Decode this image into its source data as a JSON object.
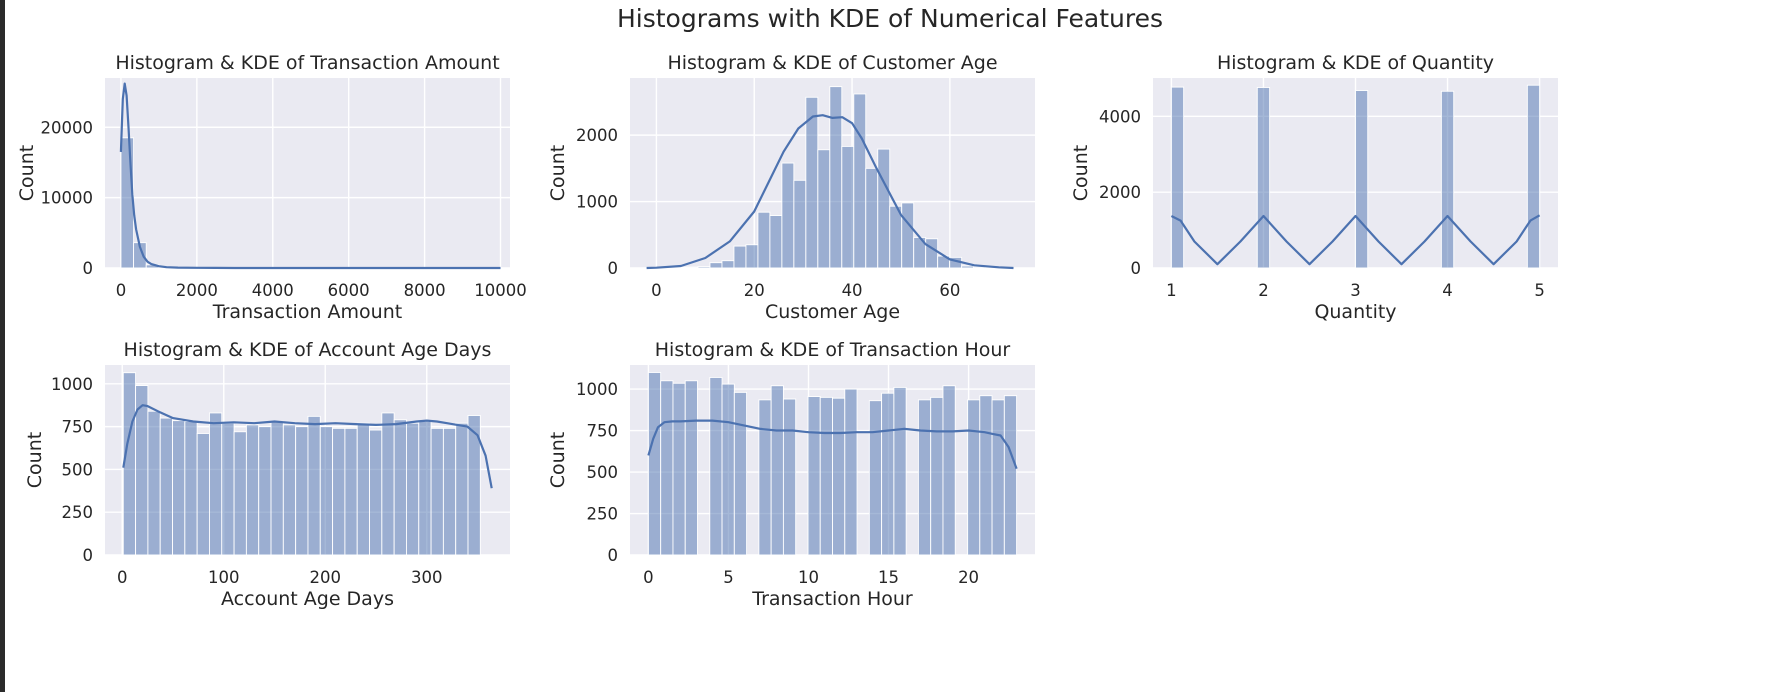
{
  "figure": {
    "suptitle": "Histograms with KDE of Numerical Features",
    "background": "#ffffff",
    "axes_facecolor": "#eaeaf2",
    "grid_color": "#ffffff",
    "bar_color": "#4c72b0",
    "bar_alpha": 0.5,
    "line_color": "#4c72b0"
  },
  "chart_data": [
    {
      "type": "bar",
      "title": "Histogram & KDE of Transaction Amount",
      "xlabel": "Transaction Amount",
      "ylabel": "Count",
      "xlim": [
        -420,
        10250
      ],
      "ylim": [
        0,
        27000
      ],
      "xticks": [
        0,
        2000,
        4000,
        6000,
        8000,
        10000
      ],
      "xtick_labels": [
        "0",
        "2000",
        "4000",
        "6000",
        "8000",
        "10000"
      ],
      "yticks": [
        0,
        10000,
        20000
      ],
      "ytick_labels": [
        "0",
        "10000",
        "20000"
      ],
      "grid": true,
      "hist": {
        "start": 0,
        "binwidth": 333,
        "counts": [
          18500,
          3600,
          450,
          150,
          80,
          45,
          30,
          20,
          15,
          10,
          8,
          6,
          5,
          4,
          4,
          3,
          3,
          2,
          2,
          2,
          2,
          1,
          1,
          1,
          1,
          1,
          1,
          1,
          1,
          1
        ]
      },
      "kde": {
        "x": [
          0,
          50,
          100,
          150,
          200,
          250,
          300,
          350,
          400,
          500,
          600,
          700,
          800,
          1000,
          1200,
          1500,
          2000,
          2500,
          3000,
          4000,
          5000,
          6000,
          8000,
          10000
        ],
        "y": [
          16500,
          24000,
          26200,
          24500,
          20000,
          15000,
          10500,
          7500,
          5500,
          3000,
          1600,
          900,
          550,
          250,
          120,
          60,
          25,
          10,
          5,
          2,
          0,
          0,
          0,
          0
        ]
      }
    },
    {
      "type": "bar",
      "title": "Histogram & KDE of Customer Age",
      "xlabel": "Customer Age",
      "ylabel": "Count",
      "xlim": [
        -5.4,
        77.4
      ],
      "ylim": [
        0,
        2860
      ],
      "xticks": [
        0,
        20,
        40,
        60
      ],
      "xtick_labels": [
        "0",
        "20",
        "40",
        "60"
      ],
      "yticks": [
        0,
        1000,
        2000
      ],
      "ytick_labels": [
        "0",
        "1000",
        "2000"
      ],
      "grid": true,
      "hist": {
        "start": -1.3,
        "binwidth": 2.45,
        "counts": [
          5,
          8,
          10,
          14,
          20,
          80,
          110,
          330,
          350,
          840,
          790,
          1580,
          1320,
          2570,
          1780,
          2730,
          1830,
          2620,
          1500,
          1790,
          930,
          980,
          460,
          440,
          180,
          160,
          30,
          15,
          5,
          3
        ]
      },
      "kde": {
        "x": [
          -2,
          0,
          5,
          10,
          15,
          20,
          23,
          26,
          29,
          32,
          34,
          36,
          38,
          40,
          42,
          45,
          50,
          55,
          60,
          65,
          70,
          73
        ],
        "y": [
          0,
          5,
          30,
          150,
          400,
          850,
          1300,
          1750,
          2100,
          2280,
          2300,
          2260,
          2270,
          2180,
          1950,
          1500,
          800,
          360,
          130,
          40,
          10,
          0
        ]
      }
    },
    {
      "type": "bar",
      "title": "Histogram & KDE of Quantity",
      "xlabel": "Quantity",
      "ylabel": "Count",
      "xlim": [
        0.8,
        5.2
      ],
      "ylim": [
        0,
        5010
      ],
      "xticks": [
        1,
        2,
        3,
        4,
        5
      ],
      "xtick_labels": [
        "1",
        "2",
        "3",
        "4",
        "5"
      ],
      "yticks": [
        0,
        2000,
        4000
      ],
      "ytick_labels": [
        "0",
        "2000",
        "4000"
      ],
      "grid": true,
      "hist": {
        "bars": [
          {
            "x0": 1.0,
            "x1": 1.133,
            "count": 4770
          },
          {
            "x0": 1.933,
            "x1": 2.067,
            "count": 4760
          },
          {
            "x0": 3.0,
            "x1": 3.133,
            "count": 4680
          },
          {
            "x0": 3.933,
            "x1": 4.067,
            "count": 4660
          },
          {
            "x0": 4.867,
            "x1": 5.0,
            "count": 4820
          }
        ]
      },
      "kde": {
        "x": [
          1.0,
          1.1,
          1.25,
          1.5,
          1.75,
          2.0,
          2.25,
          2.5,
          2.75,
          3.0,
          3.25,
          3.5,
          3.75,
          4.0,
          4.25,
          4.5,
          4.75,
          4.9,
          5.0
        ],
        "y": [
          1370,
          1250,
          700,
          100,
          700,
          1370,
          700,
          100,
          700,
          1370,
          700,
          100,
          700,
          1370,
          700,
          100,
          700,
          1250,
          1390
        ]
      }
    },
    {
      "type": "bar",
      "title": "Histogram & KDE of Account Age Days",
      "xlabel": "Account Age Days",
      "ylabel": "Count",
      "xlio": null,
      "xlim": [
        -17,
        382
      ],
      "ylim": [
        0,
        1110
      ],
      "xticks": [
        0,
        100,
        200,
        300
      ],
      "xtick_labels": [
        "0",
        "100",
        "200",
        "300"
      ],
      "yticks": [
        0,
        250,
        500,
        750,
        1000
      ],
      "ytick_labels": [
        "0",
        "250",
        "500",
        "750",
        "1000"
      ],
      "grid": true,
      "hist": {
        "start": 1,
        "binwidth": 12.13,
        "counts": [
          1065,
          990,
          840,
          800,
          785,
          780,
          710,
          830,
          770,
          720,
          760,
          750,
          780,
          760,
          750,
          810,
          750,
          740,
          740,
          770,
          730,
          830,
          790,
          770,
          780,
          740,
          740,
          770,
          815,
          0
        ]
      },
      "kde": {
        "x": [
          1,
          5,
          10,
          15,
          20,
          25,
          35,
          50,
          70,
          90,
          110,
          130,
          150,
          170,
          190,
          210,
          230,
          250,
          270,
          290,
          300,
          310,
          320,
          330,
          340,
          350,
          358,
          364
        ],
        "y": [
          510,
          650,
          780,
          850,
          875,
          870,
          840,
          800,
          780,
          770,
          775,
          770,
          780,
          770,
          765,
          770,
          765,
          760,
          765,
          780,
          785,
          780,
          770,
          760,
          750,
          700,
          580,
          390
        ]
      }
    },
    {
      "type": "bar",
      "title": "Histogram & KDE of Transaction Hour",
      "xlabel": "Transaction Hour",
      "ylabel": "Count",
      "xlim": [
        -1.15,
        24.15
      ],
      "ylim": [
        0,
        1145
      ],
      "xticks": [
        0,
        5,
        10,
        15,
        20
      ],
      "xtick_labels": [
        "0",
        "5",
        "10",
        "15",
        "20"
      ],
      "yticks": [
        0,
        250,
        500,
        750,
        1000
      ],
      "ytick_labels": [
        "0",
        "250",
        "500",
        "750",
        "1000"
      ],
      "grid": true,
      "hist": {
        "start": 0,
        "binwidth": 0.7667,
        "counts": [
          1100,
          1050,
          1035,
          1050,
          0,
          1070,
          1030,
          980,
          0,
          935,
          1020,
          940,
          0,
          955,
          950,
          945,
          1000,
          0,
          930,
          975,
          1010,
          0,
          935,
          950,
          1020,
          0,
          935,
          960,
          935,
          960
        ]
      },
      "kde": {
        "x": [
          0,
          0.3,
          0.6,
          1.0,
          1.5,
          2,
          3,
          4,
          5,
          6,
          7,
          8,
          9,
          10,
          11,
          12,
          13,
          14,
          15,
          16,
          17,
          18,
          19,
          20,
          21,
          21.5,
          22,
          22.5,
          23
        ],
        "y": [
          600,
          700,
          770,
          800,
          805,
          805,
          810,
          810,
          800,
          780,
          760,
          750,
          750,
          740,
          735,
          735,
          740,
          740,
          750,
          760,
          750,
          745,
          745,
          750,
          740,
          730,
          720,
          650,
          520
        ]
      }
    }
  ]
}
